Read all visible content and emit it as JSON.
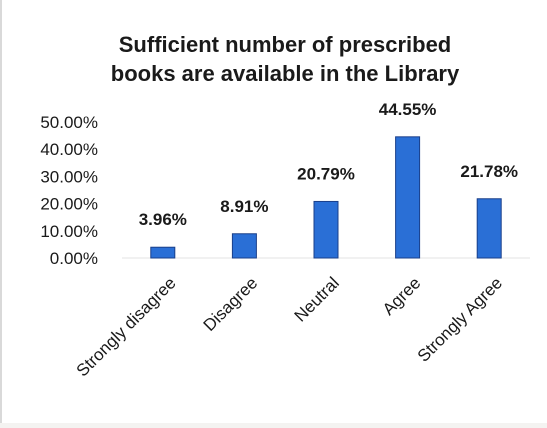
{
  "chart_data": {
    "type": "bar",
    "title": [
      "Sufficient number of prescribed",
      "books are available in the Library"
    ],
    "categories": [
      "Strongly disagree",
      "Disagree",
      "Neutral",
      "Agree",
      "Strongly Agree"
    ],
    "values": [
      3.96,
      8.91,
      20.79,
      44.55,
      21.78
    ],
    "data_labels": [
      "3.96%",
      "8.91%",
      "20.79%",
      "44.55%",
      "21.78%"
    ],
    "ylim": [
      0,
      50
    ],
    "yticks": [
      "0.00%",
      "10.00%",
      "20.00%",
      "30.00%",
      "40.00%",
      "50.00%"
    ],
    "grid": false,
    "legend": "none",
    "bar_color": "#2a6fd6",
    "bar_edge_color": "#1a3f8a"
  }
}
